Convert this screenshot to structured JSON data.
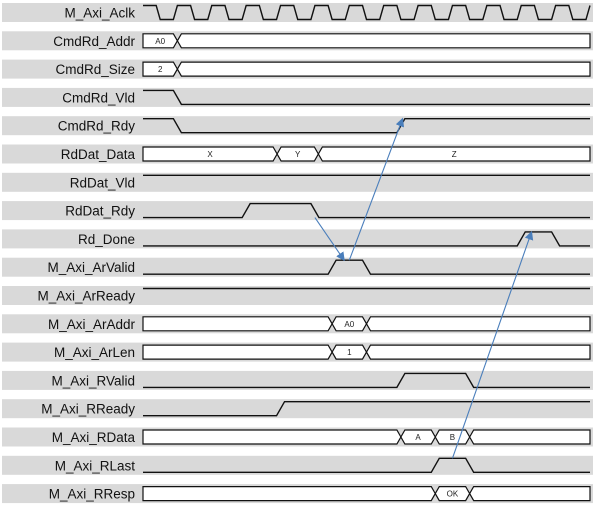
{
  "signals": [
    {
      "name": "M_Axi_Aclk",
      "kind": "clock"
    },
    {
      "name": "CmdRd_Addr",
      "kind": "bus",
      "segs": [
        {
          "t0": 0,
          "t1": 1,
          "label": "A0",
          "fill": "value"
        },
        {
          "t0": 1,
          "t1": 13,
          "label": "",
          "fill": "hatch"
        }
      ]
    },
    {
      "name": "CmdRd_Size",
      "kind": "bus",
      "segs": [
        {
          "t0": 0,
          "t1": 1,
          "label": "2",
          "fill": "value"
        },
        {
          "t0": 1,
          "t1": 13,
          "label": "",
          "fill": "hatch"
        }
      ]
    },
    {
      "name": "CmdRd_Vld",
      "kind": "bit",
      "edges": [
        [
          0,
          1
        ],
        [
          1,
          0
        ]
      ]
    },
    {
      "name": "CmdRd_Rdy",
      "kind": "bit",
      "edges": [
        [
          0,
          1
        ],
        [
          1,
          0
        ],
        [
          7.5,
          1
        ]
      ]
    },
    {
      "name": "RdDat_Data",
      "kind": "bus",
      "segs": [
        {
          "t0": 0,
          "t1": 3.9,
          "label": "X",
          "fill": "value"
        },
        {
          "t0": 3.9,
          "t1": 5.1,
          "label": "Y",
          "fill": "value"
        },
        {
          "t0": 5.1,
          "t1": 13,
          "label": "Z",
          "fill": "value"
        }
      ]
    },
    {
      "name": "RdDat_Vld",
      "kind": "bit",
      "edges": [
        [
          0,
          1
        ]
      ]
    },
    {
      "name": "RdDat_Rdy",
      "kind": "bit",
      "edges": [
        [
          0,
          0
        ],
        [
          3,
          1
        ],
        [
          5,
          0
        ]
      ]
    },
    {
      "name": "Rd_Done",
      "kind": "bit",
      "edges": [
        [
          0,
          0
        ],
        [
          11,
          1
        ],
        [
          12,
          0
        ]
      ]
    },
    {
      "name": "M_Axi_ArValid",
      "kind": "bit",
      "edges": [
        [
          0,
          0
        ],
        [
          5.5,
          1
        ],
        [
          6.5,
          0
        ]
      ]
    },
    {
      "name": "M_Axi_ArReady",
      "kind": "bit",
      "edges": [
        [
          0,
          1
        ]
      ]
    },
    {
      "name": "M_Axi_ArAddr",
      "kind": "bus",
      "segs": [
        {
          "t0": 0,
          "t1": 5.5,
          "label": "",
          "fill": "hatch"
        },
        {
          "t0": 5.5,
          "t1": 6.5,
          "label": "A0",
          "fill": "value"
        },
        {
          "t0": 6.5,
          "t1": 13,
          "label": "",
          "fill": "hatch"
        }
      ]
    },
    {
      "name": "M_Axi_ArLen",
      "kind": "bus",
      "segs": [
        {
          "t0": 0,
          "t1": 5.5,
          "label": "",
          "fill": "hatch"
        },
        {
          "t0": 5.5,
          "t1": 6.5,
          "label": "1",
          "fill": "value"
        },
        {
          "t0": 6.5,
          "t1": 13,
          "label": "",
          "fill": "hatch"
        }
      ]
    },
    {
      "name": "M_Axi_RValid",
      "kind": "bit",
      "edges": [
        [
          0,
          0
        ],
        [
          7.5,
          1
        ],
        [
          9.5,
          0
        ]
      ]
    },
    {
      "name": "M_Axi_RReady",
      "kind": "bit",
      "edges": [
        [
          0,
          0
        ],
        [
          4,
          1
        ]
      ]
    },
    {
      "name": "M_Axi_RData",
      "kind": "bus",
      "segs": [
        {
          "t0": 0,
          "t1": 7.5,
          "label": "",
          "fill": "hatch"
        },
        {
          "t0": 7.5,
          "t1": 8.5,
          "label": "A",
          "fill": "value"
        },
        {
          "t0": 8.5,
          "t1": 9.5,
          "label": "B",
          "fill": "value"
        },
        {
          "t0": 9.5,
          "t1": 13,
          "label": "",
          "fill": "hatch"
        }
      ]
    },
    {
      "name": "M_Axi_RLast",
      "kind": "bit",
      "edges": [
        [
          0,
          0
        ],
        [
          8.5,
          1
        ],
        [
          9.5,
          0
        ]
      ]
    },
    {
      "name": "M_Axi_RResp",
      "kind": "bus",
      "segs": [
        {
          "t0": 0,
          "t1": 8.5,
          "label": "",
          "fill": "hatch"
        },
        {
          "t0": 8.5,
          "t1": 9.5,
          "label": "OK",
          "fill": "value"
        },
        {
          "t0": 9.5,
          "t1": 13,
          "label": "",
          "fill": "hatch"
        }
      ]
    }
  ],
  "arrows": [
    {
      "from": "RdDat_Rdy",
      "at": 5,
      "to": "M_Axi_ArValid",
      "at2": 5.85
    },
    {
      "from": "M_Axi_ArValid",
      "at": 6,
      "to": "CmdRd_Rdy",
      "at2": 7.55
    },
    {
      "from": "M_Axi_RLast",
      "at": 9.0,
      "to": "Rd_Done",
      "at2": 11.3
    }
  ],
  "colors": {
    "lane": "#d9d9d9",
    "arrow": "#4a7ebb",
    "line": "#111111"
  }
}
